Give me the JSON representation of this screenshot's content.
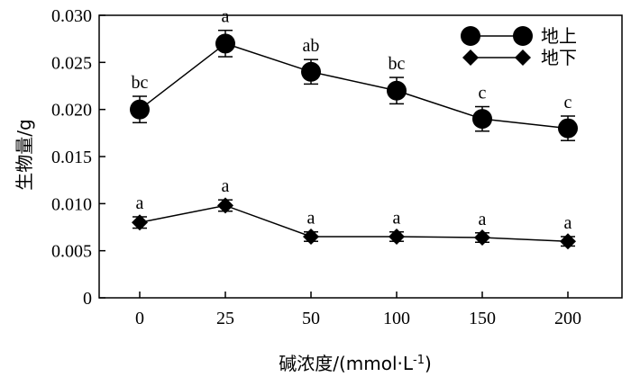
{
  "chart_data": {
    "type": "line",
    "xlabel": "碱浓度/(mmol·L",
    "xlabel_sup": "-1",
    "xlabel_tail": ")",
    "ylabel": "生物量/g",
    "categories": [
      "0",
      "25",
      "50",
      "100",
      "150",
      "200"
    ],
    "ylim": [
      0,
      0.03
    ],
    "yticks": [
      "0",
      "0.005",
      "0.010",
      "0.015",
      "0.020",
      "0.025",
      "0.030"
    ],
    "ytick_values": [
      0,
      0.005,
      0.01,
      0.015,
      0.02,
      0.025,
      0.03
    ],
    "legend_position": "top-right",
    "grid": false,
    "series": [
      {
        "name": "地上",
        "marker": "circle",
        "values": [
          0.02,
          0.027,
          0.024,
          0.022,
          0.019,
          0.018
        ],
        "errors": [
          0.0014,
          0.0014,
          0.0013,
          0.0014,
          0.0013,
          0.0013
        ],
        "labels": [
          "bc",
          "a",
          "ab",
          "bc",
          "c",
          "c"
        ]
      },
      {
        "name": "地下",
        "marker": "diamond",
        "values": [
          0.008,
          0.0098,
          0.0065,
          0.0065,
          0.0064,
          0.006
        ],
        "errors": [
          0.0006,
          0.0006,
          0.0005,
          0.0005,
          0.0005,
          0.0005
        ],
        "labels": [
          "a",
          "a",
          "a",
          "a",
          "a",
          "a"
        ]
      }
    ]
  }
}
